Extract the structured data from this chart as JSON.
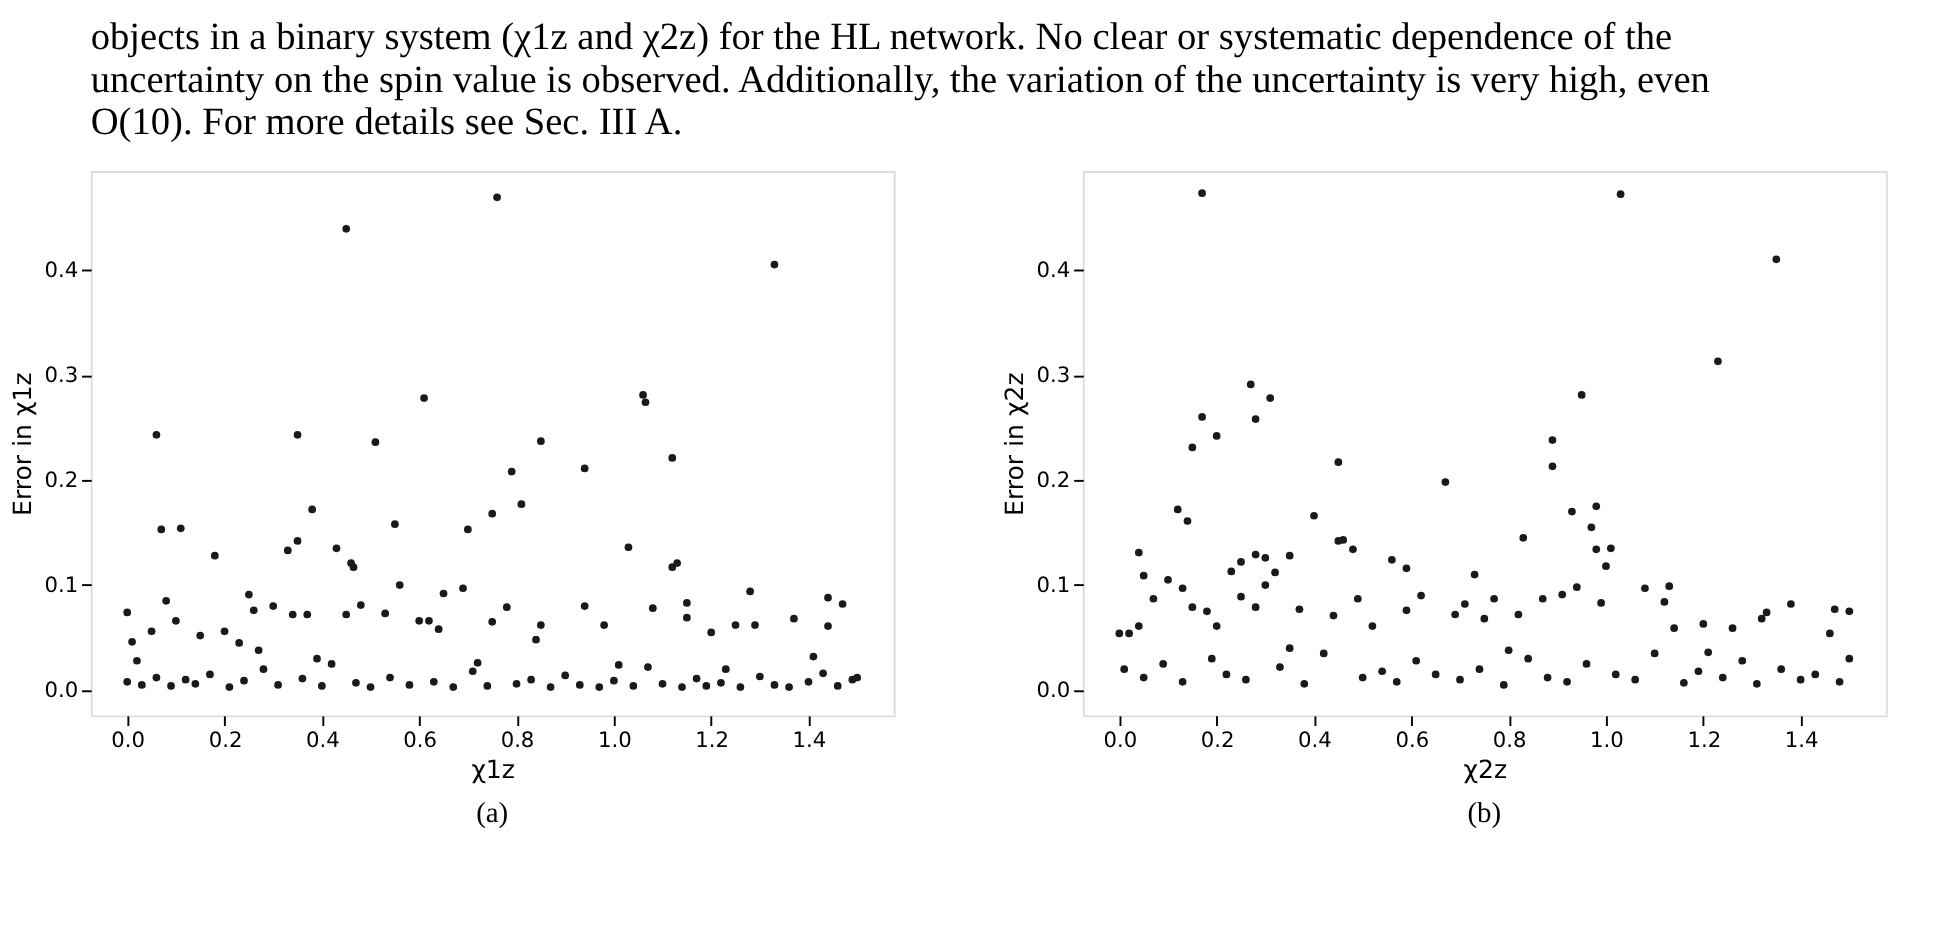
{
  "chart_data": [
    {
      "type": "other",
      "annotations": [
        "objects in a binary system (χ1z and χ2z) for the HL network. No clear or systematic dependence of the",
        "uncertainty on the spin value is observed. Additionally, the variation of the uncertainty is very high, even",
        "O(10). For more details see Sec. III A."
      ]
    },
    {
      "type": "scatter",
      "xlabel": "χ1z",
      "ylabel": "Error in χ1z",
      "annotations": [
        "(a)"
      ],
      "marker": "circle",
      "grid": false,
      "xlim": [
        -0.075,
        1.575
      ],
      "ylim": [
        -0.024,
        0.494
      ],
      "xticks": [
        {
          "value": 0,
          "label": "0.0"
        },
        0.2,
        0.4,
        0.6,
        0.8,
        {
          "value": 1,
          "label": "1.0"
        },
        1.2,
        1.4
      ],
      "yticks": [
        {
          "value": 0,
          "label": "0.0"
        },
        0.1,
        0.2,
        0.3,
        0.4
      ],
      "series": [
        {
          "color": "#1a1a1a",
          "x": [
            0.06,
            0.35,
            0.45,
            0.76,
            1.33,
            0.61,
            1.06,
            1.065,
            0.51,
            0.85,
            1.12,
            0.94,
            0.79,
            0.81,
            0.38,
            0.75,
            0.55,
            0.7,
            0.07,
            0.11,
            0.35,
            0.33,
            0.43,
            1.03,
            0.18,
            0.46,
            0.465,
            1.13,
            1.12,
            0.56,
            0.69,
            1.28,
            0.65,
            0.25,
            1.44,
            0.08,
            1.15,
            1.47,
            0.48,
            0.3,
            0.94,
            0.78,
            1.08,
            0.26,
            0.0,
            0.34,
            0.53,
            0.45,
            0.37,
            1.15,
            1.37,
            0.1,
            0.6,
            0.62,
            0.75,
            1.29,
            0.98,
            0.85,
            1.44,
            0.64,
            0.05,
            0.2,
            1.2,
            1.25,
            0.15,
            0.01,
            0.23,
            0.84,
            0.27,
            0.0,
            0.03,
            0.06,
            0.09,
            0.12,
            0.14,
            0.17,
            0.21,
            0.24,
            0.28,
            0.31,
            0.36,
            0.4,
            0.42,
            0.47,
            0.5,
            0.54,
            0.58,
            0.63,
            0.67,
            0.71,
            0.74,
            0.8,
            0.83,
            0.87,
            0.9,
            0.93,
            0.97,
            1.0,
            1.04,
            1.07,
            1.1,
            1.14,
            1.17,
            1.19,
            1.22,
            1.26,
            1.3,
            1.33,
            1.36,
            1.4,
            1.43,
            1.46,
            1.49,
            1.5,
            0.02,
            0.39,
            0.72,
            1.01,
            1.23,
            1.41
          ],
          "values": [
            0.243,
            0.243,
            0.439,
            0.469,
            0.405,
            0.278,
            0.281,
            0.274,
            0.236,
            0.237,
            0.221,
            0.211,
            0.208,
            0.177,
            0.172,
            0.168,
            0.158,
            0.153,
            0.153,
            0.154,
            0.142,
            0.133,
            0.135,
            0.136,
            0.128,
            0.121,
            0.117,
            0.121,
            0.117,
            0.1,
            0.097,
            0.094,
            0.092,
            0.091,
            0.088,
            0.085,
            0.083,
            0.082,
            0.081,
            0.08,
            0.08,
            0.079,
            0.078,
            0.076,
            0.074,
            0.072,
            0.073,
            0.072,
            0.072,
            0.069,
            0.068,
            0.066,
            0.066,
            0.066,
            0.065,
            0.062,
            0.062,
            0.062,
            0.061,
            0.058,
            0.056,
            0.056,
            0.055,
            0.062,
            0.052,
            0.046,
            0.045,
            0.048,
            0.038,
            0.008,
            0.005,
            0.012,
            0.004,
            0.01,
            0.006,
            0.015,
            0.003,
            0.009,
            0.02,
            0.005,
            0.011,
            0.004,
            0.025,
            0.007,
            0.003,
            0.012,
            0.005,
            0.008,
            0.003,
            0.018,
            0.004,
            0.006,
            0.01,
            0.003,
            0.014,
            0.005,
            0.003,
            0.009,
            0.004,
            0.022,
            0.006,
            0.003,
            0.011,
            0.004,
            0.007,
            0.003,
            0.013,
            0.005,
            0.003,
            0.008,
            0.016,
            0.004,
            0.01,
            0.012,
            0.028,
            0.03,
            0.026,
            0.024,
            0.02,
            0.032
          ]
        }
      ]
    },
    {
      "type": "scatter",
      "xlabel": "χ2z",
      "ylabel": "Error in χ2z",
      "annotations": [
        "(b)"
      ],
      "marker": "circle",
      "grid": false,
      "xlim": [
        -0.075,
        1.575
      ],
      "ylim": [
        -0.024,
        0.494
      ],
      "xticks": [
        {
          "value": 0,
          "label": "0.0"
        },
        0.2,
        0.4,
        0.6,
        0.8,
        {
          "value": 1,
          "label": "1.0"
        },
        1.2,
        1.4
      ],
      "yticks": [
        {
          "value": 0,
          "label": "0.0"
        },
        0.1,
        0.2,
        0.3,
        0.4
      ],
      "series": [
        {
          "color": "#1a1a1a",
          "x": [
            0.17,
            1.03,
            1.35,
            1.23,
            0.27,
            0.31,
            0.95,
            0.17,
            0.28,
            0.2,
            0.89,
            0.15,
            0.45,
            0.89,
            0.67,
            0.98,
            0.12,
            0.93,
            0.4,
            0.14,
            0.97,
            0.83,
            0.46,
            0.45,
            0.48,
            0.98,
            1.01,
            0.04,
            0.28,
            0.3,
            0.35,
            0.56,
            0.25,
            1.0,
            0.59,
            0.23,
            0.32,
            0.73,
            0.05,
            0.1,
            0.3,
            1.13,
            0.94,
            1.08,
            0.13,
            0.62,
            0.91,
            0.25,
            0.07,
            0.49,
            0.77,
            0.87,
            1.12,
            0.99,
            1.38,
            0.71,
            0.15,
            0.28,
            0.37,
            1.47,
            1.5,
            0.18,
            0.59,
            1.33,
            0.69,
            0.82,
            0.44,
            0.75,
            1.32,
            0.04,
            0.2,
            0.52,
            1.2,
            1.26,
            0.0,
            0.02,
            1.46,
            1.14,
            0.01,
            0.05,
            0.09,
            0.13,
            0.19,
            0.22,
            0.26,
            0.33,
            0.38,
            0.42,
            0.5,
            0.54,
            0.57,
            0.61,
            0.65,
            0.7,
            0.74,
            0.79,
            0.84,
            0.88,
            0.92,
            0.96,
            1.02,
            1.06,
            1.1,
            1.16,
            1.19,
            1.24,
            1.28,
            1.31,
            1.36,
            1.4,
            1.43,
            1.48,
            1.5,
            0.35,
            0.8,
            1.21
          ],
          "values": [
            0.473,
            0.472,
            0.41,
            0.313,
            0.291,
            0.278,
            0.281,
            0.26,
            0.258,
            0.242,
            0.238,
            0.231,
            0.217,
            0.213,
            0.198,
            0.175,
            0.172,
            0.17,
            0.166,
            0.161,
            0.155,
            0.145,
            0.143,
            0.142,
            0.134,
            0.134,
            0.135,
            0.131,
            0.129,
            0.126,
            0.128,
            0.124,
            0.122,
            0.118,
            0.116,
            0.113,
            0.112,
            0.11,
            0.109,
            0.105,
            0.1,
            0.099,
            0.098,
            0.097,
            0.097,
            0.09,
            0.091,
            0.089,
            0.087,
            0.087,
            0.087,
            0.087,
            0.084,
            0.083,
            0.082,
            0.082,
            0.079,
            0.079,
            0.077,
            0.077,
            0.075,
            0.075,
            0.076,
            0.074,
            0.072,
            0.072,
            0.071,
            0.068,
            0.068,
            0.061,
            0.061,
            0.061,
            0.063,
            0.059,
            0.054,
            0.054,
            0.054,
            0.059,
            0.02,
            0.012,
            0.025,
            0.008,
            0.03,
            0.015,
            0.01,
            0.022,
            0.006,
            0.035,
            0.012,
            0.018,
            0.008,
            0.028,
            0.015,
            0.01,
            0.02,
            0.005,
            0.03,
            0.012,
            0.008,
            0.025,
            0.015,
            0.01,
            0.035,
            0.007,
            0.018,
            0.012,
            0.028,
            0.006,
            0.02,
            0.01,
            0.015,
            0.008,
            0.03,
            0.04,
            0.038,
            0.036
          ]
        }
      ]
    }
  ]
}
